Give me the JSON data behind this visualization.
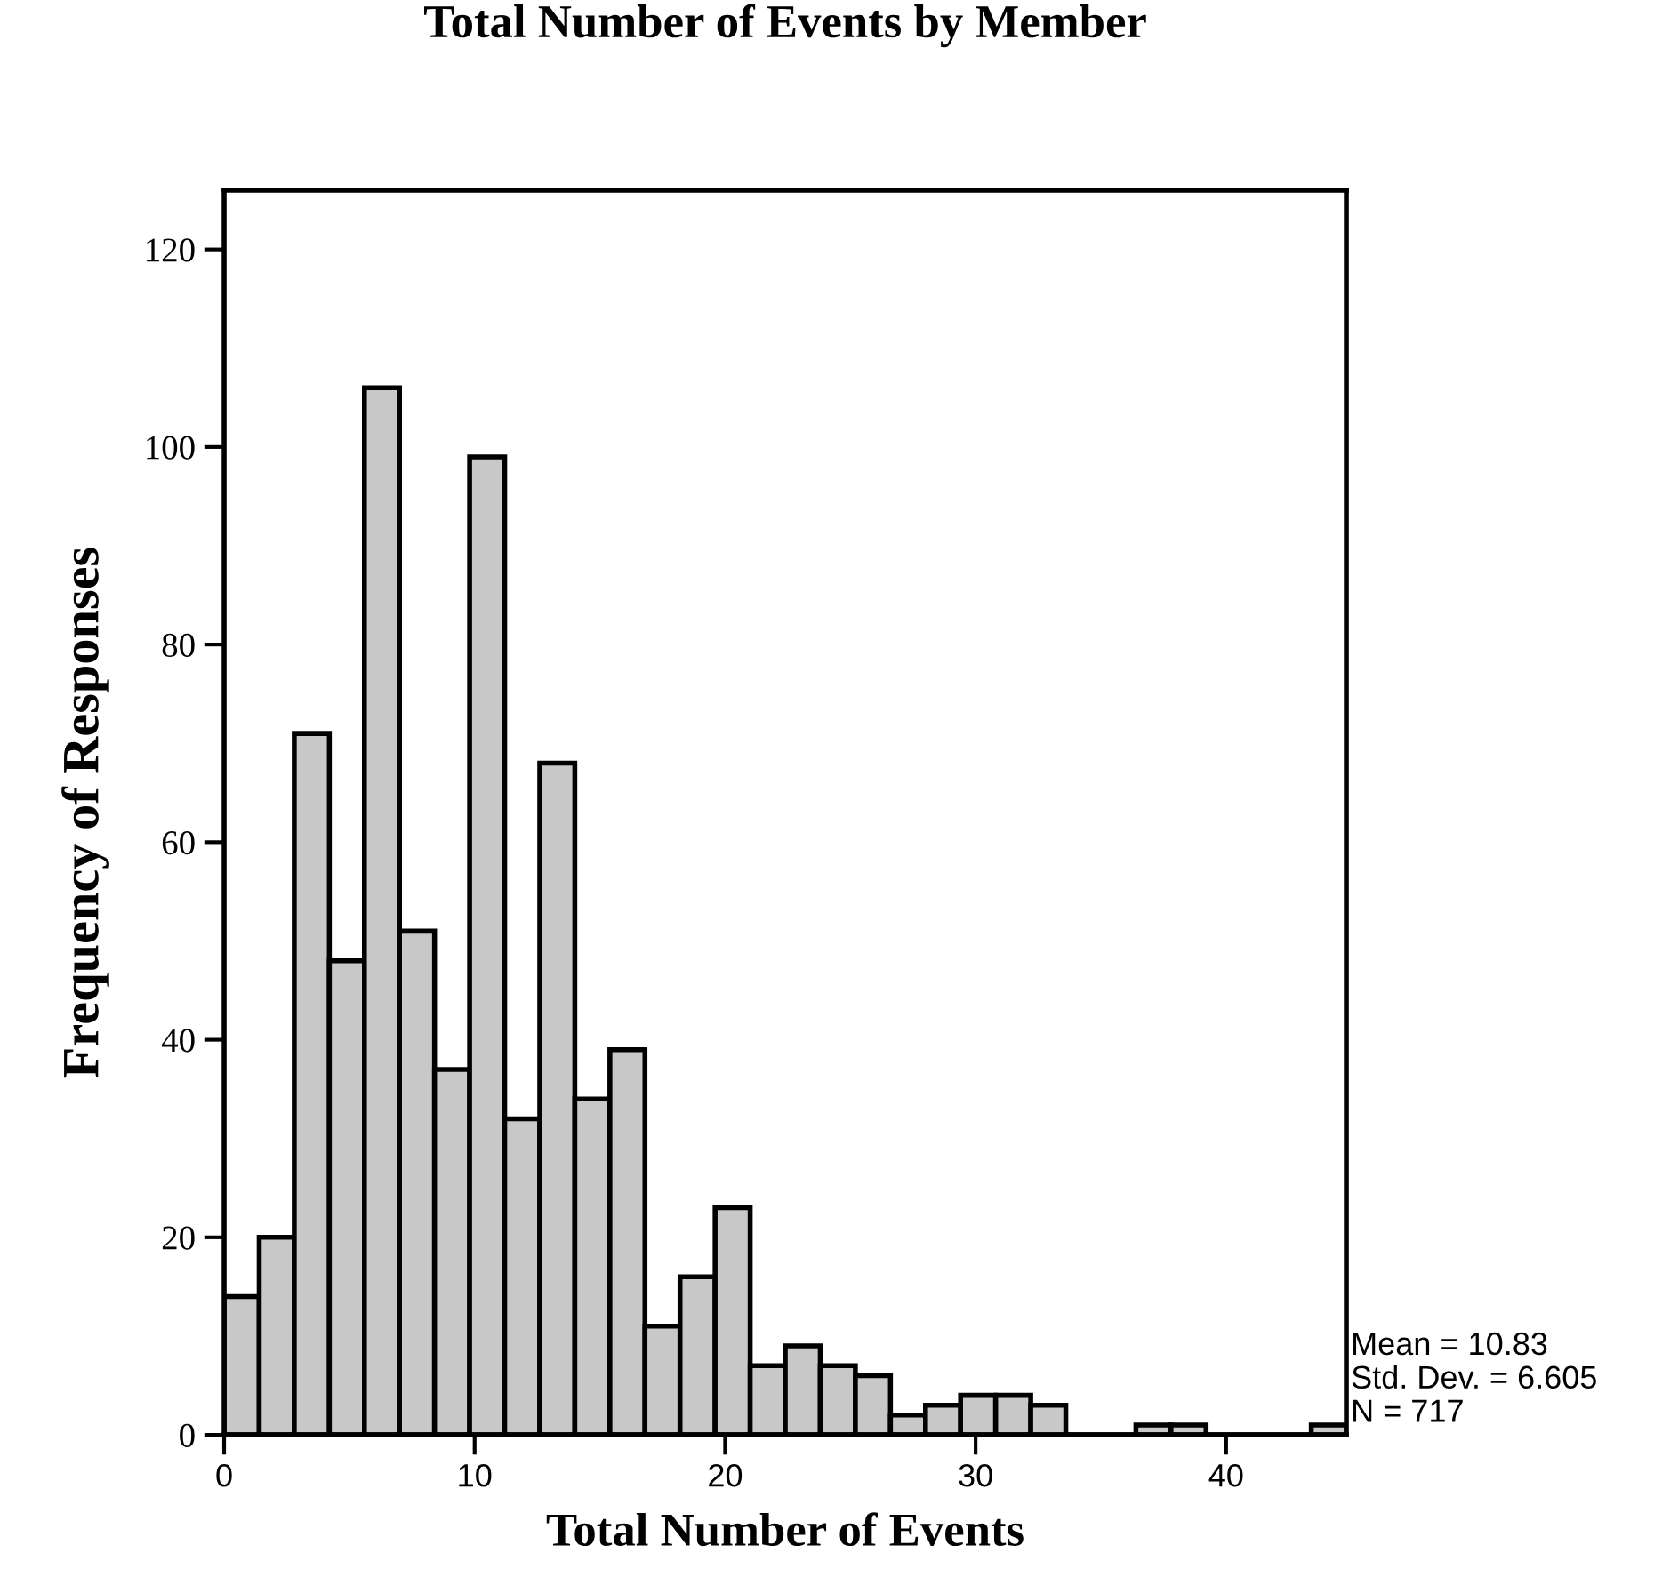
{
  "chart_data": {
    "type": "histogram",
    "title": "Total Number of Events by Member",
    "xlabel": "Total Number of Events",
    "ylabel": "Frequency of Responses",
    "bins": [
      0,
      1.4,
      2.8,
      4.2,
      5.6,
      7,
      8.4,
      9.8,
      11.2,
      12.6,
      14,
      15.4,
      16.8,
      18.2,
      19.6,
      21,
      22.4,
      23.8,
      25.2,
      26.6,
      28,
      29.4,
      30.8,
      32.2,
      33.6,
      35,
      36.4,
      37.8,
      39.2,
      40.6,
      42,
      43.4,
      44.8
    ],
    "values": [
      14,
      20,
      71,
      48,
      106,
      51,
      37,
      99,
      32,
      68,
      34,
      39,
      11,
      16,
      23,
      7,
      9,
      7,
      6,
      2,
      3,
      4,
      4,
      3,
      0,
      0,
      1,
      1,
      0,
      0,
      0,
      1
    ],
    "color": "#c8c8c8",
    "xlim": [
      0,
      44.8
    ],
    "xticks": [
      0,
      10,
      20,
      30,
      40
    ],
    "ylim": [
      0,
      126
    ],
    "yticks": [
      0,
      20,
      40,
      60,
      80,
      100,
      120
    ],
    "grid": false,
    "annotations": [
      "Mean = 10.83",
      "Std. Dev. = 6.605",
      "N = 717"
    ]
  }
}
